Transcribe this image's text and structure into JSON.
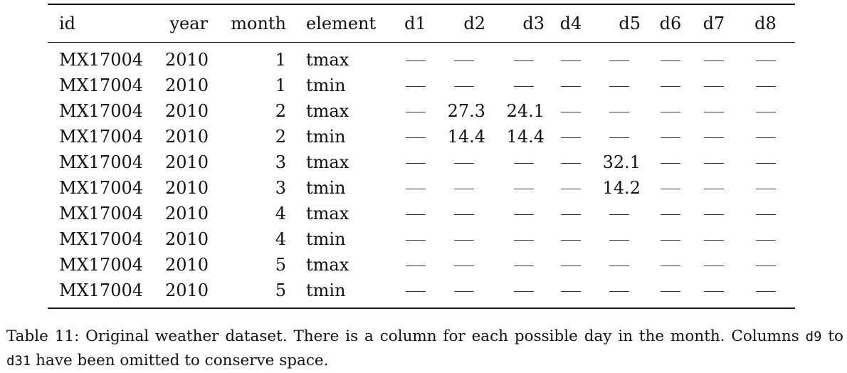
{
  "table": {
    "headers": [
      "id",
      "year",
      "month",
      "element",
      "d1",
      "d2",
      "d3",
      "d4",
      "d5",
      "d6",
      "d7",
      "d8"
    ],
    "missing_symbol": "—",
    "rows": [
      [
        "MX17004",
        "2010",
        "1",
        "tmax",
        "—",
        "—",
        "—",
        "—",
        "—",
        "—",
        "—",
        "—"
      ],
      [
        "MX17004",
        "2010",
        "1",
        "tmin",
        "—",
        "—",
        "—",
        "—",
        "—",
        "—",
        "—",
        "—"
      ],
      [
        "MX17004",
        "2010",
        "2",
        "tmax",
        "—",
        "27.3",
        "24.1",
        "—",
        "—",
        "—",
        "—",
        "—"
      ],
      [
        "MX17004",
        "2010",
        "2",
        "tmin",
        "—",
        "14.4",
        "14.4",
        "—",
        "—",
        "—",
        "—",
        "—"
      ],
      [
        "MX17004",
        "2010",
        "3",
        "tmax",
        "—",
        "—",
        "—",
        "—",
        "32.1",
        "—",
        "—",
        "—"
      ],
      [
        "MX17004",
        "2010",
        "3",
        "tmin",
        "—",
        "—",
        "—",
        "—",
        "14.2",
        "—",
        "—",
        "—"
      ],
      [
        "MX17004",
        "2010",
        "4",
        "tmax",
        "—",
        "—",
        "—",
        "—",
        "—",
        "—",
        "—",
        "—"
      ],
      [
        "MX17004",
        "2010",
        "4",
        "tmin",
        "—",
        "—",
        "—",
        "—",
        "—",
        "—",
        "—",
        "—"
      ],
      [
        "MX17004",
        "2010",
        "5",
        "tmax",
        "—",
        "—",
        "—",
        "—",
        "—",
        "—",
        "—",
        "—"
      ],
      [
        "MX17004",
        "2010",
        "5",
        "tmin",
        "—",
        "—",
        "—",
        "—",
        "—",
        "—",
        "—",
        "—"
      ]
    ]
  },
  "caption": {
    "part1": "Table 11: Original weather dataset. There is a column for each possible day in the month. Columns ",
    "code1": "d9",
    "part2": " to ",
    "code2": "d31",
    "part3": " have been omitted to conserve space."
  }
}
